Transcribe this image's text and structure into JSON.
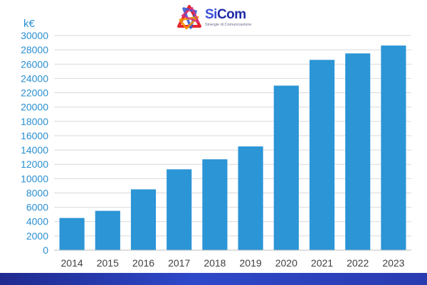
{
  "brand": {
    "name_part1": "Si",
    "name_part2": "Com",
    "tagline": "Sinergie di Comunicazione",
    "colors": {
      "primary": "#1e2aa8",
      "accent_red": "#e3262e",
      "accent_orange": "#f39200",
      "accent_magenta": "#d6327f",
      "accent_blue": "#3a5bd9"
    }
  },
  "chart_data": {
    "type": "bar",
    "title": "",
    "xlabel": "",
    "ylabel": "k€",
    "categories": [
      "2014",
      "2015",
      "2016",
      "2017",
      "2018",
      "2019",
      "2020",
      "2021",
      "2022",
      "2023"
    ],
    "values": [
      4500,
      5500,
      8500,
      11300,
      12700,
      14500,
      23000,
      26600,
      27500,
      28600
    ],
    "ylim": [
      0,
      30000
    ],
    "yticks": [
      0,
      2000,
      4000,
      6000,
      8000,
      10000,
      12000,
      14000,
      16000,
      18000,
      20000,
      22000,
      24000,
      26000,
      28000,
      30000
    ],
    "grid": true,
    "bar_color": "#2b95d6",
    "tick_color": "#2b8fd0",
    "grid_color": "#d9d9d9"
  }
}
